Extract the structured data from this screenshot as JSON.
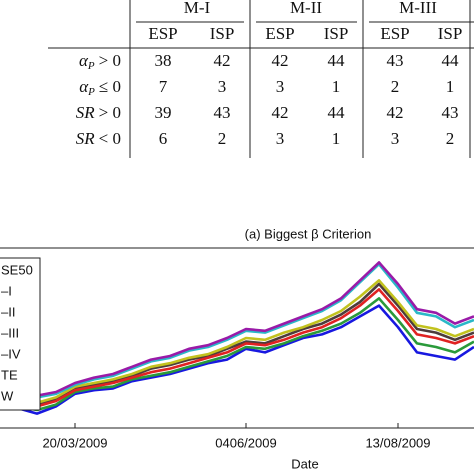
{
  "table": {
    "groups": [
      "M-I",
      "M-II",
      "M-III"
    ],
    "subheaders": [
      "ESP",
      "ISP",
      "ESP",
      "ISP",
      "ESP",
      "ISP"
    ],
    "rows": [
      {
        "symbol": "α",
        "sub": "P",
        "rel": "> 0",
        "values": [
          38,
          42,
          42,
          44,
          43,
          44
        ]
      },
      {
        "symbol": "α",
        "sub": "P",
        "rel": "≤ 0",
        "values": [
          7,
          3,
          3,
          1,
          2,
          1
        ]
      },
      {
        "symbol": "SR",
        "rel": "> 0",
        "values": [
          39,
          43,
          42,
          44,
          42,
          43
        ]
      },
      {
        "symbol": "SR",
        "rel": "< 0",
        "values": [
          6,
          2,
          3,
          1,
          3,
          2
        ]
      }
    ]
  },
  "chart_data": {
    "type": "line",
    "title": "(a) Biggest β Criterion",
    "xlabel": "Date",
    "categories": [
      null,
      null,
      null,
      "20/03/2009",
      null,
      null,
      null,
      null,
      null,
      null,
      null,
      null,
      "0406/2009",
      null,
      null,
      null,
      null,
      null,
      null,
      null,
      "13/08/2009",
      null,
      null,
      null,
      null
    ],
    "ylim": [
      0,
      100
    ],
    "series": [
      {
        "name": "SE50",
        "color": "#9a1aa8",
        "values": [
          16,
          18,
          20,
          25,
          28,
          30,
          34,
          38,
          40,
          44,
          46,
          50,
          55,
          54,
          58,
          62,
          66,
          72,
          82,
          92,
          80,
          66,
          64,
          58,
          62
        ]
      },
      {
        "name": "–I",
        "color": "#2ab8c8",
        "values": [
          15,
          17,
          19,
          24,
          27,
          29,
          33,
          37,
          39,
          43,
          45,
          49,
          54,
          53,
          57,
          61,
          65,
          71,
          81,
          91,
          78,
          64,
          62,
          56,
          60
        ]
      },
      {
        "name": "–II",
        "color": "#c2c21e",
        "values": [
          14,
          14,
          17,
          23,
          25,
          27,
          30,
          34,
          36,
          39,
          41,
          45,
          50,
          49,
          53,
          56,
          60,
          65,
          73,
          82,
          70,
          57,
          55,
          51,
          55
        ]
      },
      {
        "name": "–III",
        "color": "#e02222",
        "values": [
          13,
          12,
          15,
          21,
          23,
          25,
          28,
          31,
          33,
          36,
          39,
          42,
          47,
          46,
          49,
          53,
          56,
          61,
          68,
          77,
          65,
          52,
          50,
          47,
          51
        ]
      },
      {
        "name": "–IV",
        "color": "#4d3c3c",
        "values": [
          14,
          13,
          16,
          22,
          24,
          26,
          29,
          33,
          35,
          38,
          40,
          44,
          48,
          47,
          51,
          55,
          58,
          63,
          70,
          80,
          68,
          55,
          53,
          49,
          53
        ]
      },
      {
        "name": "TE",
        "color": "#2a9a3a",
        "values": [
          12,
          10,
          13,
          20,
          22,
          23,
          27,
          29,
          31,
          34,
          37,
          40,
          45,
          44,
          47,
          51,
          54,
          58,
          64,
          72,
          60,
          47,
          45,
          42,
          48
        ]
      },
      {
        "name": "W",
        "color": "#1818e0",
        "values": [
          11,
          8,
          12,
          19,
          21,
          22,
          26,
          28,
          30,
          33,
          36,
          38,
          44,
          42,
          46,
          50,
          52,
          56,
          62,
          68,
          56,
          42,
          40,
          38,
          45
        ]
      }
    ]
  }
}
